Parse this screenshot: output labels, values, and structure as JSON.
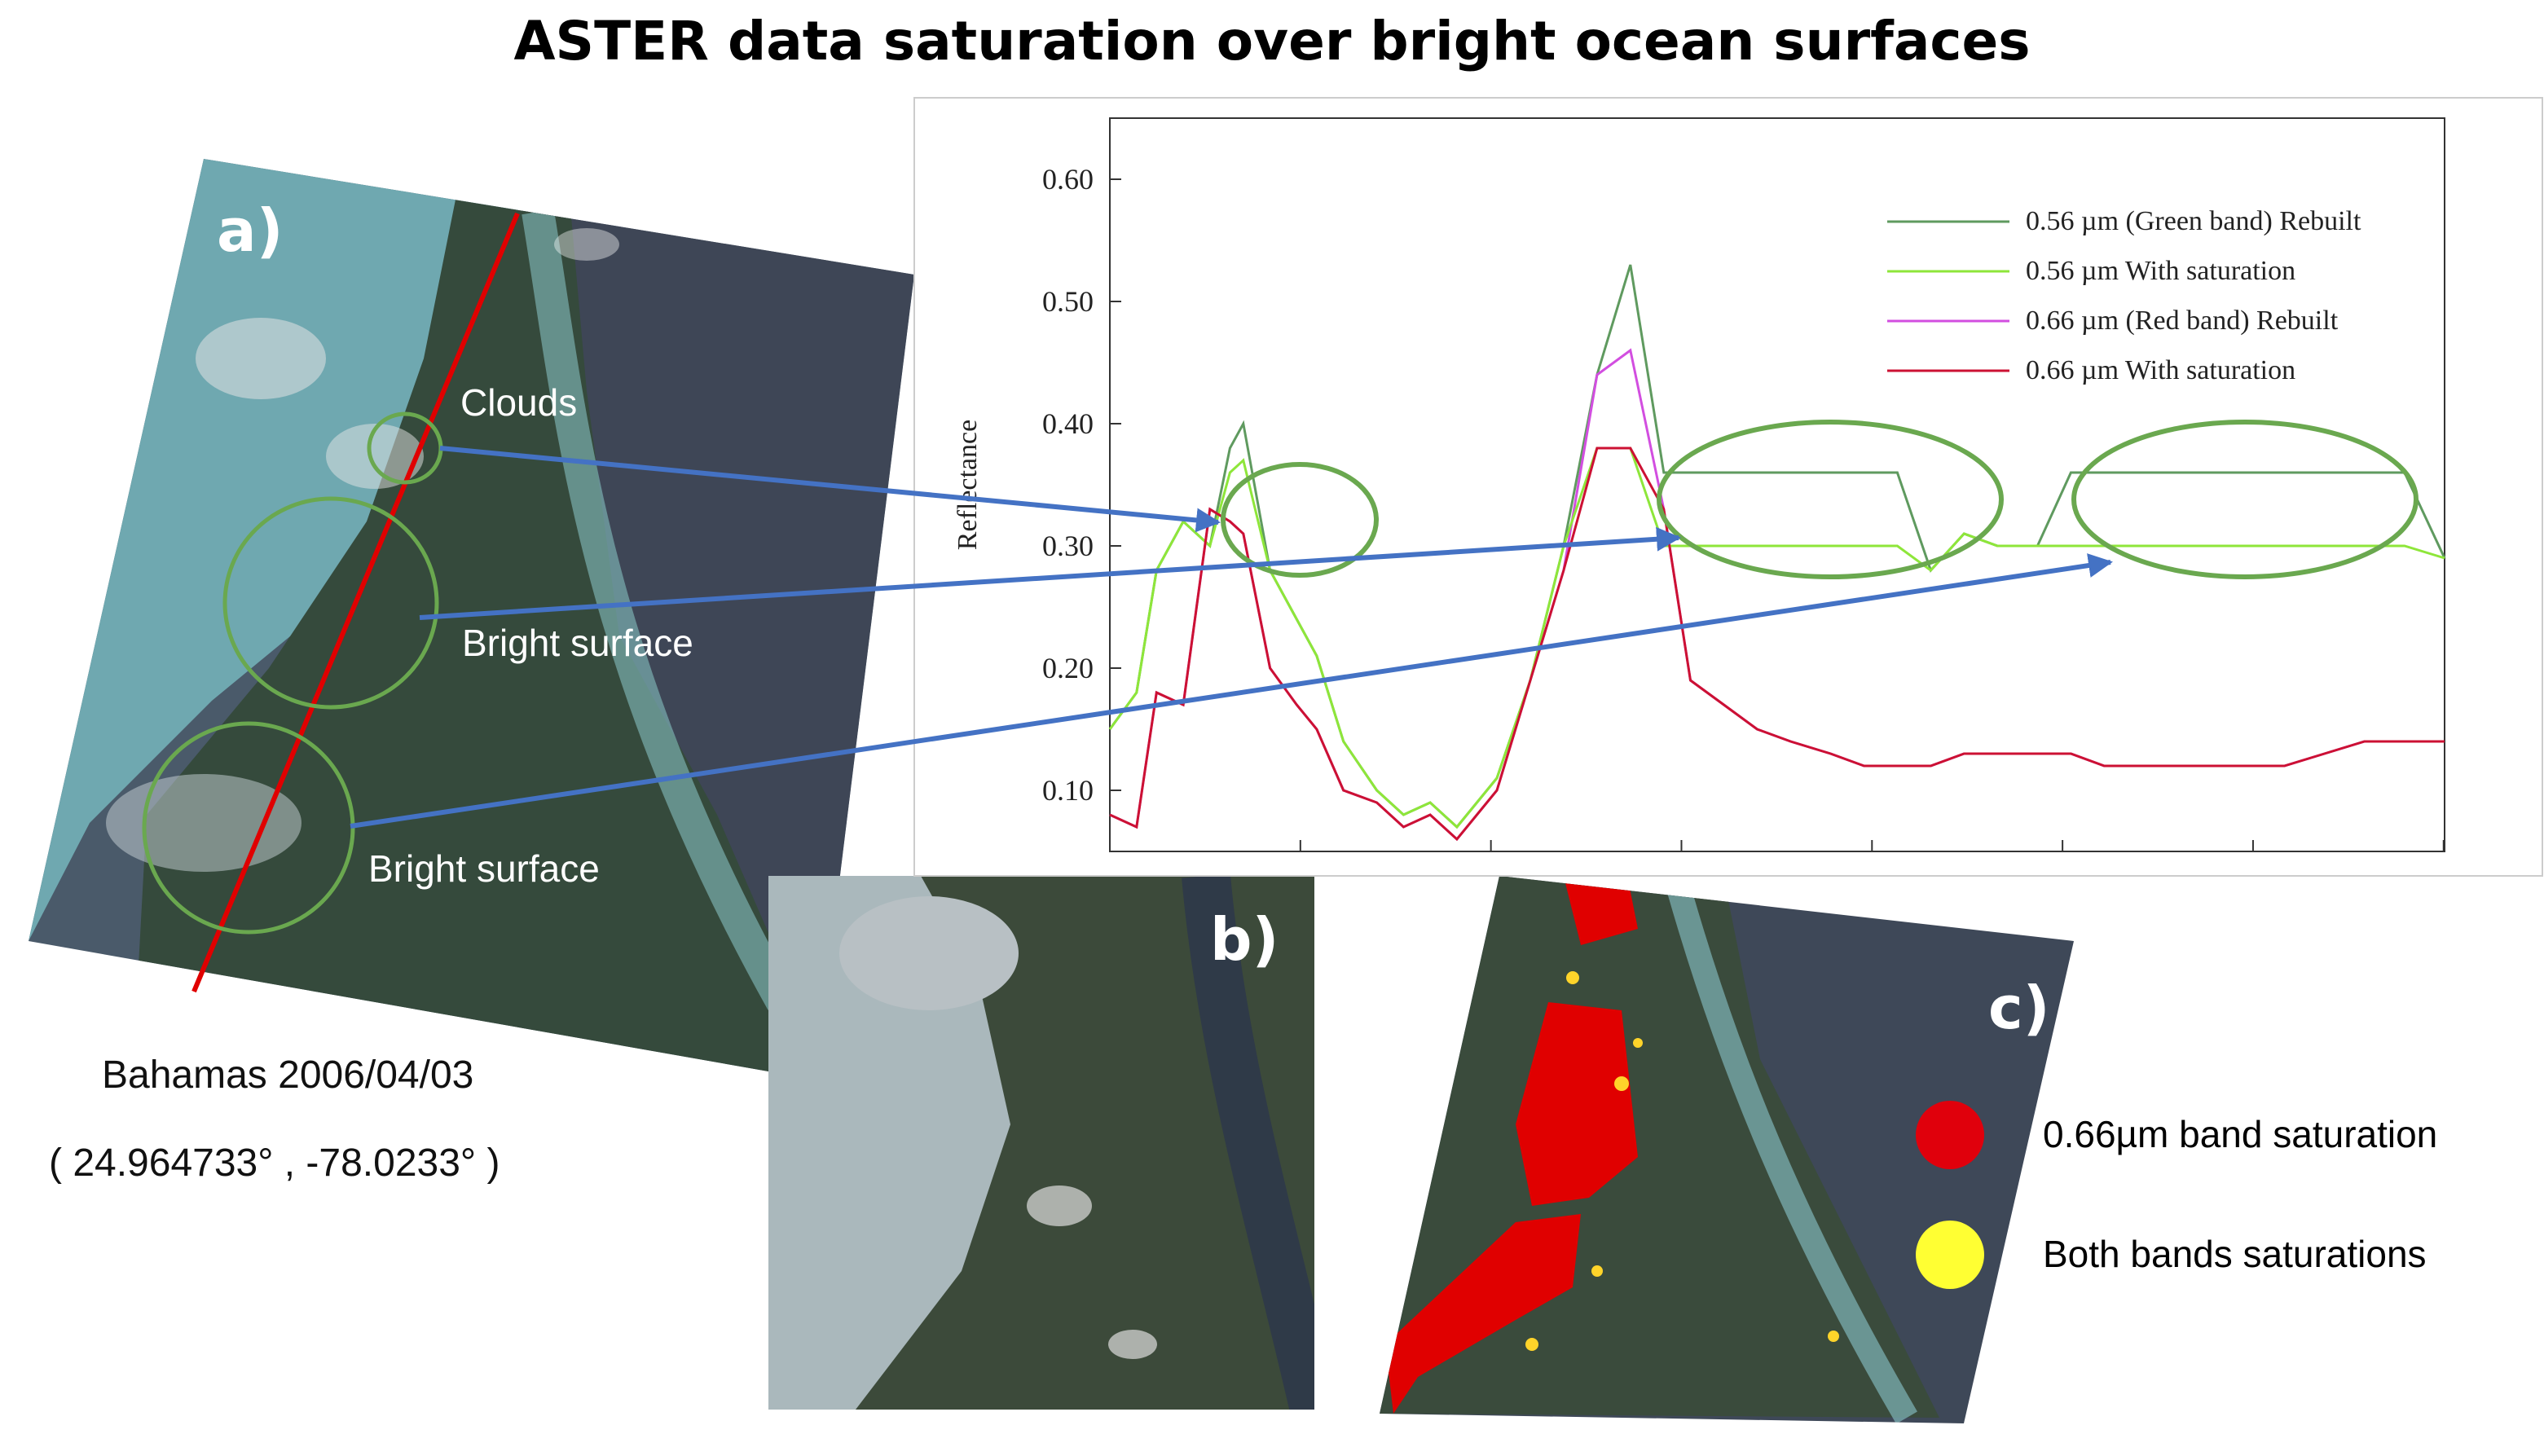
{
  "title": "ASTER data saturation over bright ocean surfaces",
  "panels": {
    "a": "a)",
    "b": "b)",
    "c": "c)"
  },
  "annotations": {
    "clouds": "Clouds",
    "bright1": "Bright surface",
    "bright2": "Bright surface"
  },
  "caption": {
    "location": "Bahamas 2006/04/03",
    "coords": "( 24.964733° ,  -78.0233° )"
  },
  "legend_c": [
    {
      "label": "0.66µm band saturation",
      "color": "#e0000c"
    },
    {
      "label": "Both bands saturations",
      "color": "#ffff33"
    }
  ],
  "colors": {
    "green_rebuilt": "#5f9a5f",
    "green_sat": "#8ee63a",
    "red_rebuilt": "#d24ee0",
    "red_sat": "#cc1133",
    "circle": "#6aa84f",
    "arrow": "#4472c4",
    "transect": "#e00000"
  },
  "chart_data": {
    "type": "line",
    "title": "",
    "xlabel": "",
    "ylabel": "Reflectance",
    "ylim": [
      0.05,
      0.65
    ],
    "yticks": [
      "0.60",
      "0.50",
      "0.40",
      "0.30",
      "0.20",
      "0.10"
    ],
    "ytick_values": [
      0.6,
      0.5,
      0.4,
      0.3,
      0.2,
      0.1
    ],
    "x": [
      0,
      8,
      14,
      22,
      30,
      36,
      40,
      48,
      56,
      62,
      70,
      80,
      88,
      96,
      104,
      116,
      126,
      136,
      146,
      156,
      166,
      174,
      184,
      194,
      204,
      216,
      226,
      236,
      246,
      256,
      266,
      278,
      288,
      298,
      308,
      320,
      330,
      340,
      352,
      364,
      376,
      388,
      400
    ],
    "series": [
      {
        "name": "0.56 µm (Green band) Rebuilt",
        "values": [
          0.15,
          0.18,
          0.28,
          0.32,
          0.3,
          0.38,
          0.4,
          0.28,
          0.24,
          0.21,
          0.14,
          0.1,
          0.08,
          0.09,
          0.07,
          0.11,
          0.19,
          0.3,
          0.44,
          0.53,
          0.36,
          0.36,
          0.36,
          0.36,
          0.36,
          0.36,
          0.36,
          0.36,
          0.28,
          0.31,
          0.3,
          0.3,
          0.36,
          0.36,
          0.36,
          0.36,
          0.36,
          0.36,
          0.36,
          0.36,
          0.36,
          0.36,
          0.29
        ]
      },
      {
        "name": "0.56 µm With saturation",
        "values": [
          0.15,
          0.18,
          0.28,
          0.32,
          0.3,
          0.36,
          0.37,
          0.28,
          0.24,
          0.21,
          0.14,
          0.1,
          0.08,
          0.09,
          0.07,
          0.11,
          0.19,
          0.3,
          0.38,
          0.38,
          0.3,
          0.3,
          0.3,
          0.3,
          0.3,
          0.3,
          0.3,
          0.3,
          0.28,
          0.31,
          0.3,
          0.3,
          0.3,
          0.3,
          0.3,
          0.3,
          0.3,
          0.3,
          0.3,
          0.3,
          0.3,
          0.3,
          0.29
        ]
      },
      {
        "name": "0.66 µm (Red band) Rebuilt",
        "values": [
          0.08,
          0.07,
          0.18,
          0.17,
          0.33,
          0.32,
          0.31,
          0.2,
          0.17,
          0.15,
          0.1,
          0.09,
          0.07,
          0.08,
          0.06,
          0.1,
          0.19,
          0.28,
          0.44,
          0.46,
          0.33,
          0.19,
          0.17,
          0.15,
          0.14,
          0.13,
          0.12,
          0.12,
          0.12,
          0.13,
          0.13,
          0.13,
          0.13,
          0.12,
          0.12,
          0.12,
          0.12,
          0.12,
          0.12,
          0.13,
          0.14,
          0.14,
          0.14
        ]
      },
      {
        "name": "0.66 µm With saturation",
        "values": [
          0.08,
          0.07,
          0.18,
          0.17,
          0.33,
          0.32,
          0.31,
          0.2,
          0.17,
          0.15,
          0.1,
          0.09,
          0.07,
          0.08,
          0.06,
          0.1,
          0.19,
          0.28,
          0.38,
          0.38,
          0.33,
          0.19,
          0.17,
          0.15,
          0.14,
          0.13,
          0.12,
          0.12,
          0.12,
          0.13,
          0.13,
          0.13,
          0.13,
          0.12,
          0.12,
          0.12,
          0.12,
          0.12,
          0.12,
          0.13,
          0.14,
          0.14,
          0.14
        ]
      }
    ],
    "legend_position": "top-right"
  }
}
